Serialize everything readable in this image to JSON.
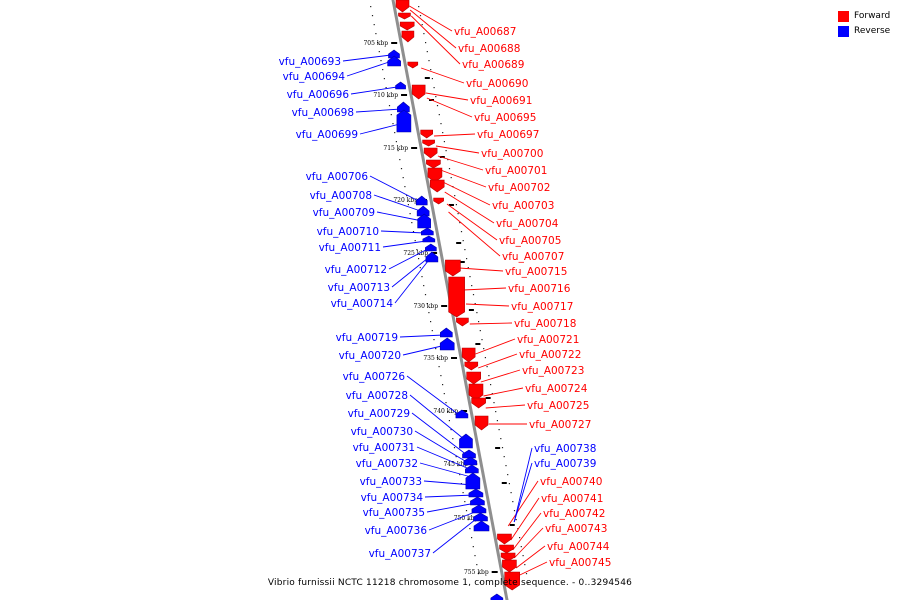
{
  "colors": {
    "forward": "#ff0000",
    "reverse": "#0000ff",
    "backbone": "#8f8f8f"
  },
  "legend": [
    {
      "label": "Forward",
      "color": "#ff0000",
      "icon": "red-square-swatch"
    },
    {
      "label": "Reverse",
      "color": "#0000ff",
      "icon": "blue-square-swatch"
    }
  ],
  "caption": "Vibrio furnissii NCTC 11218 chromosome 1, complete sequence. - 0..3294546",
  "ticks": [
    "705 kbp",
    "710 kbp",
    "715 kbp",
    "720 kbp",
    "725 kbp",
    "730 kbp",
    "735 kbp",
    "740 kbp",
    "745 kbp",
    "750 kbp",
    "755 kbp"
  ],
  "forward_genes": [
    "vfu_A00687",
    "vfu_A00688",
    "vfu_A00689",
    "vfu_A00690",
    "vfu_A00691",
    "vfu_A00695",
    "vfu_A00697",
    "vfu_A00700",
    "vfu_A00701",
    "vfu_A00702",
    "vfu_A00703",
    "vfu_A00704",
    "vfu_A00705",
    "vfu_A00707",
    "vfu_A00715",
    "vfu_A00716",
    "vfu_A00717",
    "vfu_A00718",
    "vfu_A00721",
    "vfu_A00722",
    "vfu_A00723",
    "vfu_A00724",
    "vfu_A00725",
    "vfu_A00727",
    "vfu_A00740",
    "vfu_A00741",
    "vfu_A00742",
    "vfu_A00743",
    "vfu_A00744",
    "vfu_A00745"
  ],
  "reverse_genes": [
    "vfu_A00693",
    "vfu_A00694",
    "vfu_A00696",
    "vfu_A00698",
    "vfu_A00699",
    "vfu_A00706",
    "vfu_A00708",
    "vfu_A00709",
    "vfu_A00710",
    "vfu_A00711",
    "vfu_A00712",
    "vfu_A00713",
    "vfu_A00714",
    "vfu_A00719",
    "vfu_A00720",
    "vfu_A00726",
    "vfu_A00728",
    "vfu_A00729",
    "vfu_A00730",
    "vfu_A00731",
    "vfu_A00732",
    "vfu_A00733",
    "vfu_A00734",
    "vfu_A00735",
    "vfu_A00736",
    "vfu_A00737",
    "vfu_A00738",
    "vfu_A00739"
  ]
}
